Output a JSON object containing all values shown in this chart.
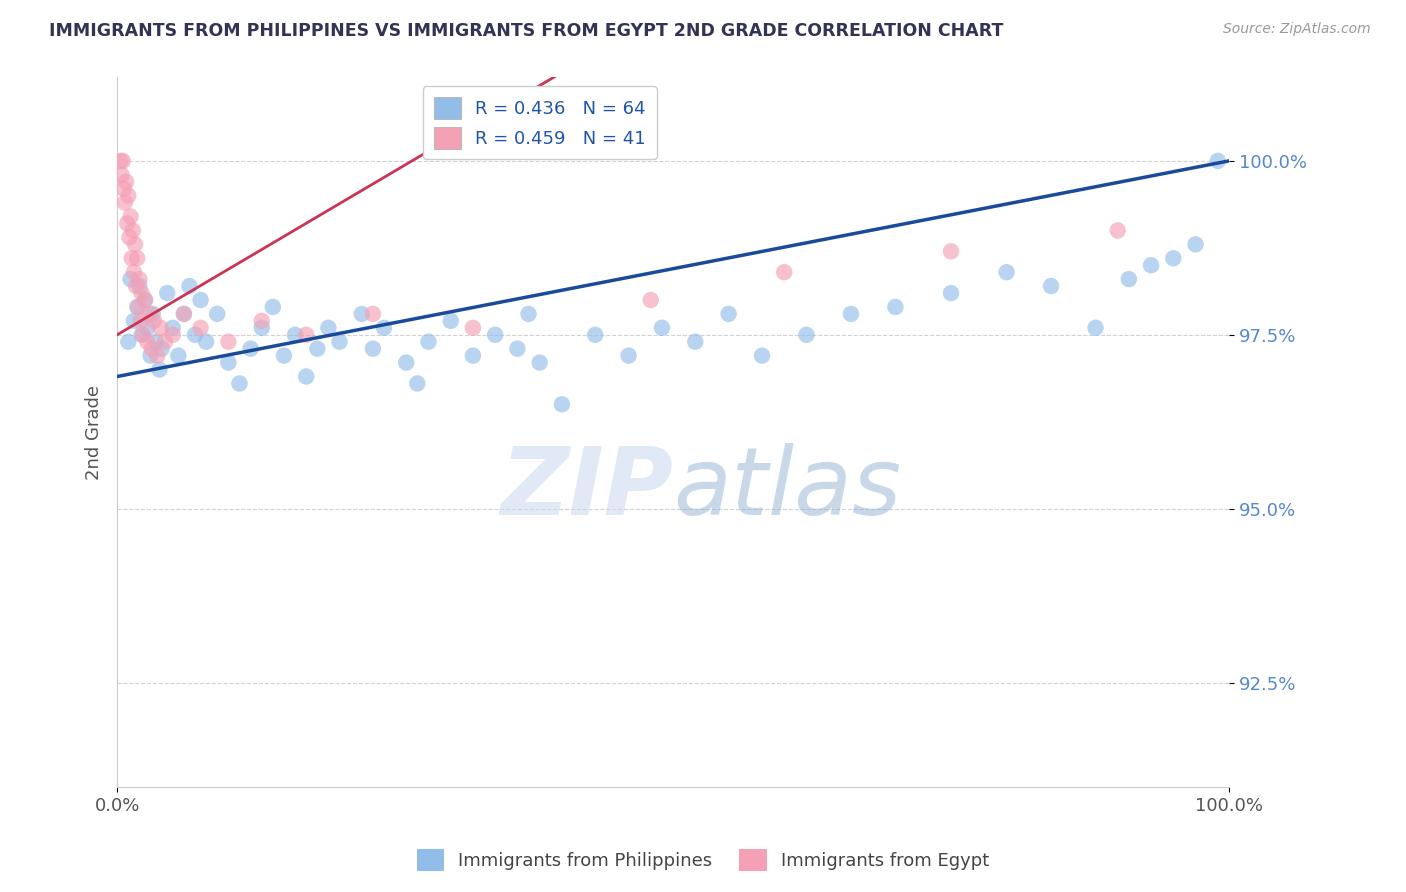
{
  "title": "IMMIGRANTS FROM PHILIPPINES VS IMMIGRANTS FROM EGYPT 2ND GRADE CORRELATION CHART",
  "source_text": "Source: ZipAtlas.com",
  "ylabel": "2nd Grade",
  "xlim": [
    0.0,
    100.0
  ],
  "ylim": [
    91.0,
    101.2
  ],
  "yticks": [
    92.5,
    95.0,
    97.5,
    100.0
  ],
  "ytick_labels": [
    "92.5%",
    "95.0%",
    "97.5%",
    "100.0%"
  ],
  "xticks": [
    0.0,
    100.0
  ],
  "xtick_labels": [
    "0.0%",
    "100.0%"
  ],
  "legend_blue_label": "Immigrants from Philippines",
  "legend_pink_label": "Immigrants from Egypt",
  "R_blue": 0.436,
  "N_blue": 64,
  "R_pink": 0.459,
  "N_pink": 41,
  "blue_color": "#92BDE8",
  "pink_color": "#F4A0B5",
  "blue_line_color": "#1A4A9A",
  "pink_line_color": "#CC3355",
  "blue_line_x0": 0.0,
  "blue_line_y0": 96.9,
  "blue_line_x1": 100.0,
  "blue_line_y1": 100.0,
  "pink_line_x0": 0.0,
  "pink_line_y0": 97.5,
  "pink_line_x1": 35.0,
  "pink_line_y1": 100.8,
  "blue_scatter_x": [
    1.0,
    1.2,
    1.5,
    1.8,
    2.0,
    2.2,
    2.5,
    2.7,
    3.0,
    3.2,
    3.5,
    3.8,
    4.0,
    4.5,
    5.0,
    5.5,
    6.0,
    6.5,
    7.0,
    7.5,
    8.0,
    9.0,
    10.0,
    11.0,
    12.0,
    13.0,
    14.0,
    15.0,
    16.0,
    17.0,
    18.0,
    19.0,
    20.0,
    22.0,
    23.0,
    24.0,
    26.0,
    27.0,
    28.0,
    30.0,
    32.0,
    34.0,
    36.0,
    37.0,
    38.0,
    40.0,
    43.0,
    46.0,
    49.0,
    52.0,
    55.0,
    58.0,
    62.0,
    66.0,
    70.0,
    75.0,
    80.0,
    84.0,
    88.0,
    91.0,
    93.0,
    95.0,
    97.0,
    99.0
  ],
  "blue_scatter_y": [
    97.4,
    98.3,
    97.7,
    97.9,
    98.2,
    97.5,
    98.0,
    97.6,
    97.2,
    97.8,
    97.4,
    97.0,
    97.3,
    98.1,
    97.6,
    97.2,
    97.8,
    98.2,
    97.5,
    98.0,
    97.4,
    97.8,
    97.1,
    96.8,
    97.3,
    97.6,
    97.9,
    97.2,
    97.5,
    96.9,
    97.3,
    97.6,
    97.4,
    97.8,
    97.3,
    97.6,
    97.1,
    96.8,
    97.4,
    97.7,
    97.2,
    97.5,
    97.3,
    97.8,
    97.1,
    96.5,
    97.5,
    97.2,
    97.6,
    97.4,
    97.8,
    97.2,
    97.5,
    97.8,
    97.9,
    98.1,
    98.4,
    98.2,
    97.6,
    98.3,
    98.5,
    98.6,
    98.8,
    100.0
  ],
  "pink_scatter_x": [
    0.3,
    0.4,
    0.5,
    0.6,
    0.7,
    0.8,
    0.9,
    1.0,
    1.1,
    1.2,
    1.3,
    1.4,
    1.5,
    1.6,
    1.7,
    1.8,
    1.9,
    2.0,
    2.1,
    2.2,
    2.3,
    2.5,
    2.7,
    2.9,
    3.1,
    3.3,
    3.6,
    3.9,
    4.3,
    5.0,
    6.0,
    7.5,
    10.0,
    13.0,
    17.0,
    23.0,
    32.0,
    48.0,
    60.0,
    75.0,
    90.0
  ],
  "pink_scatter_y": [
    100.0,
    99.8,
    100.0,
    99.6,
    99.4,
    99.7,
    99.1,
    99.5,
    98.9,
    99.2,
    98.6,
    99.0,
    98.4,
    98.8,
    98.2,
    98.6,
    97.9,
    98.3,
    97.7,
    98.1,
    97.5,
    98.0,
    97.4,
    97.8,
    97.3,
    97.7,
    97.2,
    97.6,
    97.4,
    97.5,
    97.8,
    97.6,
    97.4,
    97.7,
    97.5,
    97.8,
    97.6,
    98.0,
    98.4,
    98.7,
    99.0
  ]
}
